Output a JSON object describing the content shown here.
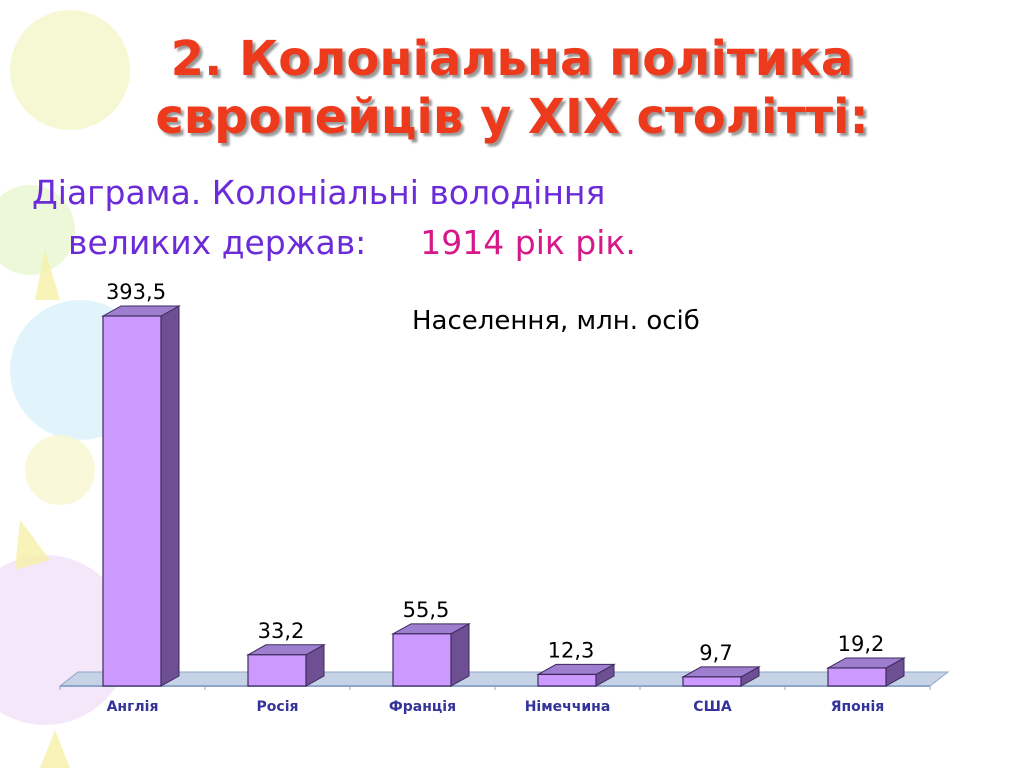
{
  "slide": {
    "title_line1": "2. Колоніальна політика",
    "title_line2": "європейців у XIX столітті:",
    "subtitle_line1": "Діаграма. Колоніальні володіння",
    "subtitle_line2": "великих держав:",
    "subtitle_year": "1914 рік рік."
  },
  "colors": {
    "title": "#ee3a1c",
    "subtitle": "#6c2bd9",
    "year": "#d6188a",
    "bar_front": "#cc99ff",
    "bar_side": "#6e4f94",
    "bar_top": "#9e7fcf",
    "floor": "#8fa6c9",
    "category_label": "#333399"
  },
  "chart_data": {
    "type": "bar",
    "title": "Населення, млн. осіб",
    "categories": [
      "Англія",
      "Росія",
      "Франція",
      "Німеччина",
      "США",
      "Японія"
    ],
    "values": [
      393.5,
      33.2,
      55.5,
      12.3,
      9.7,
      19.2
    ],
    "value_labels": [
      "393,5",
      "33,2",
      "55,5",
      "12,3",
      "9,7",
      "19,2"
    ],
    "xlabel": "",
    "ylabel": "",
    "ylim": [
      0,
      400
    ],
    "grid": false,
    "legend": "none",
    "style": "3d-column"
  }
}
